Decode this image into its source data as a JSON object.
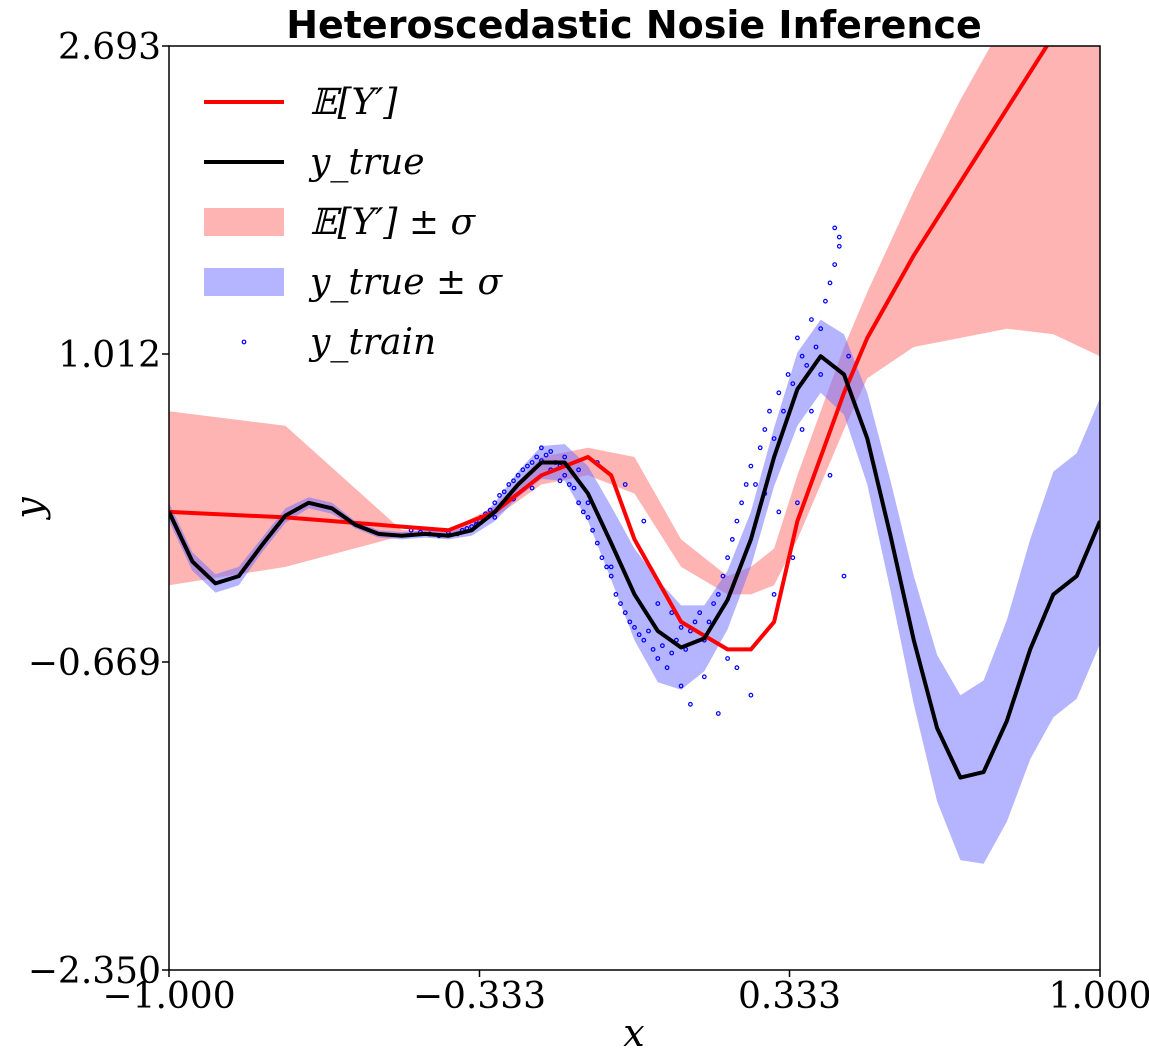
{
  "chart_data": {
    "type": "line",
    "title": "Heteroscedastic Nosie Inference",
    "xlabel": "x",
    "ylabel": "y",
    "xlim": [
      -1.0,
      1.0
    ],
    "ylim": [
      -2.35,
      2.693
    ],
    "xticks": [
      -1.0,
      -0.333,
      0.333,
      1.0
    ],
    "xtick_labels": [
      "−1.000",
      "−0.333",
      "0.333",
      "1.000"
    ],
    "yticks": [
      -2.35,
      -0.669,
      1.012,
      2.693
    ],
    "ytick_labels": [
      "−2.350",
      "−0.669",
      "1.012",
      "2.693"
    ],
    "grid": false,
    "legend_position": "top-left",
    "legend": [
      {
        "label": "𝔼[Y′]",
        "kind": "line",
        "color": "#ff0000"
      },
      {
        "label": "y_true",
        "kind": "line",
        "color": "#000000"
      },
      {
        "label": "𝔼[Y′] ± σ",
        "kind": "band",
        "color": "#ff6a6a"
      },
      {
        "label": "y_true ± σ",
        "kind": "band",
        "color": "#6a6aff"
      },
      {
        "label": "y_train",
        "kind": "marker",
        "color": "#0000ff"
      }
    ],
    "series": [
      {
        "name": "𝔼[Y′]",
        "type": "line",
        "color": "#ff0000",
        "x": [
          -1.0,
          -0.75,
          -0.5,
          -0.4,
          -0.3,
          -0.2,
          -0.1,
          -0.05,
          0.0,
          0.1,
          0.2,
          0.25,
          0.3,
          0.35,
          0.4,
          0.45,
          0.5,
          0.6,
          0.7,
          0.8,
          0.9,
          1.0
        ],
        "y": [
          0.15,
          0.12,
          0.07,
          0.05,
          0.15,
          0.35,
          0.45,
          0.35,
          0.0,
          -0.45,
          -0.6,
          -0.6,
          -0.45,
          0.1,
          0.45,
          0.8,
          1.1,
          1.55,
          1.95,
          2.35,
          2.75,
          3.15
        ]
      },
      {
        "name": "y_true",
        "type": "line",
        "color": "#000000",
        "x": [
          -1.0,
          -0.95,
          -0.9,
          -0.85,
          -0.8,
          -0.75,
          -0.7,
          -0.65,
          -0.6,
          -0.55,
          -0.5,
          -0.45,
          -0.4,
          -0.35,
          -0.3,
          -0.25,
          -0.2,
          -0.15,
          -0.1,
          -0.05,
          0.0,
          0.05,
          0.1,
          0.15,
          0.2,
          0.25,
          0.3,
          0.35,
          0.4,
          0.45,
          0.5,
          0.55,
          0.6,
          0.65,
          0.7,
          0.75,
          0.8,
          0.85,
          0.9,
          0.95,
          1.0
        ],
        "y": [
          0.15,
          -0.12,
          -0.24,
          -0.2,
          -0.03,
          0.13,
          0.2,
          0.17,
          0.08,
          0.03,
          0.02,
          0.03,
          0.02,
          0.05,
          0.15,
          0.3,
          0.42,
          0.42,
          0.25,
          -0.02,
          -0.3,
          -0.5,
          -0.59,
          -0.54,
          -0.33,
          0.0,
          0.45,
          0.82,
          1.0,
          0.9,
          0.55,
          0.02,
          -0.55,
          -1.03,
          -1.3,
          -1.27,
          -0.99,
          -0.6,
          -0.3,
          -0.2,
          0.1
        ]
      },
      {
        "name": "𝔼[Y′] ± σ",
        "type": "band",
        "color": "#ff6a6a",
        "x": [
          -1.0,
          -0.75,
          -0.5,
          -0.45,
          -0.4,
          -0.3,
          -0.2,
          -0.1,
          0.0,
          0.1,
          0.2,
          0.25,
          0.3,
          0.35,
          0.4,
          0.45,
          0.5,
          0.6,
          0.7,
          0.8,
          0.9,
          1.0
        ],
        "lower": [
          -0.25,
          -0.15,
          0.02,
          0.02,
          0.02,
          0.12,
          0.3,
          0.35,
          0.25,
          -0.15,
          -0.3,
          -0.3,
          -0.25,
          0.0,
          0.3,
          0.6,
          0.88,
          1.05,
          1.1,
          1.15,
          1.12,
          1.0
        ],
        "upper": [
          0.7,
          0.62,
          0.05,
          0.05,
          0.05,
          0.18,
          0.45,
          0.5,
          0.45,
          0.0,
          -0.2,
          -0.15,
          -0.05,
          0.35,
          0.7,
          1.05,
          1.35,
          1.9,
          2.4,
          2.85,
          3.2,
          3.5
        ]
      },
      {
        "name": "y_true ± σ",
        "type": "band",
        "color": "#6a6aff",
        "x": [
          -1.0,
          -0.95,
          -0.9,
          -0.85,
          -0.8,
          -0.75,
          -0.7,
          -0.65,
          -0.6,
          -0.55,
          -0.5,
          -0.45,
          -0.4,
          -0.35,
          -0.3,
          -0.25,
          -0.2,
          -0.15,
          -0.1,
          -0.05,
          0.0,
          0.05,
          0.1,
          0.15,
          0.2,
          0.25,
          0.3,
          0.35,
          0.4,
          0.45,
          0.5,
          0.55,
          0.6,
          0.65,
          0.7,
          0.75,
          0.8,
          0.85,
          0.9,
          0.95,
          1.0
        ],
        "sigma": [
          0.05,
          0.05,
          0.05,
          0.05,
          0.04,
          0.04,
          0.03,
          0.03,
          0.02,
          0.02,
          0.02,
          0.02,
          0.02,
          0.03,
          0.05,
          0.07,
          0.09,
          0.1,
          0.15,
          0.2,
          0.25,
          0.28,
          0.23,
          0.18,
          0.16,
          0.15,
          0.16,
          0.2,
          0.2,
          0.22,
          0.25,
          0.3,
          0.35,
          0.4,
          0.45,
          0.5,
          0.55,
          0.6,
          0.67,
          0.67,
          0.67
        ]
      }
    ],
    "scatter": {
      "name": "y_train",
      "color": "#0000ff",
      "x": [
        -0.48,
        -0.46,
        -0.44,
        -0.42,
        -0.4,
        -0.38,
        -0.37,
        -0.36,
        -0.35,
        -0.34,
        -0.33,
        -0.32,
        -0.31,
        -0.3,
        -0.29,
        -0.28,
        -0.27,
        -0.26,
        -0.25,
        -0.24,
        -0.23,
        -0.22,
        -0.21,
        -0.2,
        -0.19,
        -0.18,
        -0.17,
        -0.16,
        -0.15,
        -0.14,
        -0.13,
        -0.12,
        -0.11,
        -0.1,
        -0.09,
        -0.08,
        -0.07,
        -0.06,
        -0.05,
        -0.04,
        -0.03,
        -0.02,
        -0.01,
        0.0,
        0.01,
        0.02,
        0.03,
        0.04,
        0.05,
        0.06,
        0.07,
        0.08,
        0.09,
        0.1,
        0.11,
        0.12,
        0.13,
        0.14,
        0.15,
        0.16,
        0.17,
        0.18,
        0.19,
        0.2,
        0.21,
        0.22,
        0.23,
        0.24,
        0.25,
        0.26,
        0.27,
        0.28,
        0.29,
        0.3,
        0.31,
        0.32,
        0.33,
        0.34,
        0.35,
        0.36,
        0.37,
        0.38,
        0.39,
        0.4,
        0.41,
        0.42,
        0.43,
        0.44,
        -0.2,
        -0.18,
        -0.15,
        -0.1,
        -0.05,
        0.05,
        0.1,
        0.15,
        0.2,
        0.25,
        0.3,
        0.35,
        0.38,
        0.4,
        0.42,
        0.43,
        0.44,
        0.45,
        0.46,
        0.36,
        0.34,
        0.31,
        0.28,
        0.22,
        0.18,
        0.12,
        0.08,
        0.02,
        -0.02,
        -0.08,
        -0.12,
        -0.16,
        -0.22,
        -0.26,
        -0.3,
        -0.34
      ],
      "y": [
        0.05,
        0.04,
        0.03,
        0.02,
        0.04,
        0.03,
        0.05,
        0.06,
        0.07,
        0.1,
        0.12,
        0.14,
        0.16,
        0.2,
        0.24,
        0.26,
        0.3,
        0.32,
        0.35,
        0.38,
        0.4,
        0.42,
        0.45,
        0.43,
        0.46,
        0.48,
        0.42,
        0.4,
        0.35,
        0.3,
        0.28,
        0.2,
        0.15,
        0.12,
        0.05,
        -0.02,
        -0.1,
        -0.15,
        -0.2,
        -0.3,
        -0.35,
        -0.4,
        -0.45,
        -0.48,
        -0.52,
        -0.55,
        -0.5,
        -0.6,
        -0.65,
        -0.58,
        -0.7,
        -0.62,
        -0.55,
        -0.48,
        -0.6,
        -0.5,
        -0.45,
        -0.4,
        -0.55,
        -0.45,
        -0.35,
        -0.3,
        -0.2,
        -0.1,
        0.0,
        0.1,
        0.2,
        0.3,
        0.4,
        0.3,
        0.5,
        0.6,
        0.7,
        0.55,
        0.8,
        0.7,
        0.9,
        0.85,
        1.1,
        1.0,
        0.95,
        1.2,
        1.05,
        0.9,
        1.3,
        1.4,
        1.5,
        1.6,
        0.5,
        0.38,
        0.45,
        0.2,
        -0.15,
        -0.35,
        -0.8,
        -0.75,
        -0.65,
        -0.85,
        -0.3,
        0.2,
        0.7,
        1.15,
        0.35,
        1.7,
        1.65,
        -0.2,
        1.0,
        0.6,
        -0.1,
        0.15,
        0.25,
        -0.7,
        -0.95,
        -0.9,
        -0.4,
        0.1,
        0.3,
        0.42,
        0.38,
        0.32,
        0.28,
        0.22,
        0.12,
        0.08
      ]
    }
  }
}
